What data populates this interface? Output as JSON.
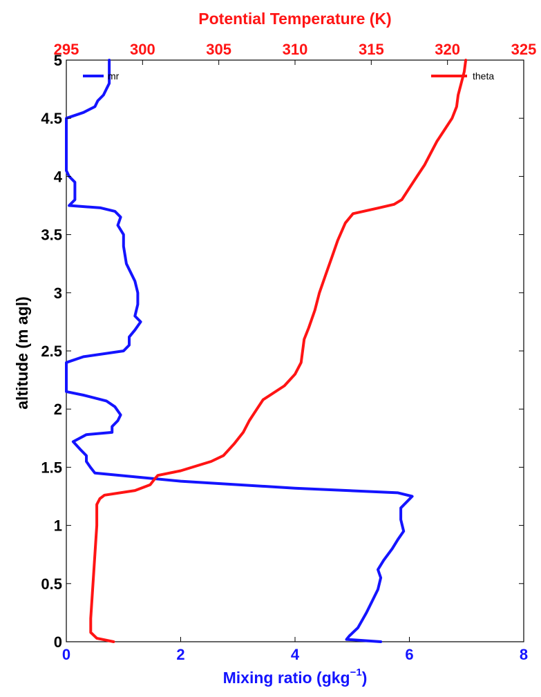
{
  "chart_data": {
    "type": "line",
    "ylabel": "altitude (m agl)",
    "ylim": [
      0,
      5
    ],
    "yticks": [
      0,
      0.5,
      1,
      1.5,
      2,
      2.5,
      3,
      3.5,
      4,
      4.5,
      5
    ],
    "ytick_labels": [
      "0",
      "0.5",
      "1",
      "1.5",
      "2",
      "2.5",
      "3",
      "3.5",
      "4",
      "4.5",
      "5"
    ],
    "grid": false,
    "x_bottom": {
      "label_main": "Mixing ratio (gkg",
      "label_sup": "−1",
      "label_end": ")",
      "lim": [
        0,
        8
      ],
      "ticks": [
        0,
        2,
        4,
        6,
        8
      ],
      "tick_labels": [
        "0",
        "2",
        "4",
        "6",
        "8"
      ],
      "color": "#1414ff"
    },
    "x_top": {
      "label": "Potential Temperature (K)",
      "lim": [
        295,
        325
      ],
      "ticks": [
        295,
        300,
        305,
        310,
        315,
        320,
        325
      ],
      "tick_labels": [
        "295",
        "300",
        "305",
        "310",
        "315",
        "320",
        "325"
      ],
      "color": "#ff1414"
    },
    "series": [
      {
        "name": "mr",
        "axis": "bottom",
        "color": "#1414ff",
        "points": [
          [
            5.5,
            0.0
          ],
          [
            4.9,
            0.02
          ],
          [
            4.95,
            0.05
          ],
          [
            5.1,
            0.12
          ],
          [
            5.25,
            0.25
          ],
          [
            5.35,
            0.35
          ],
          [
            5.45,
            0.45
          ],
          [
            5.5,
            0.55
          ],
          [
            5.45,
            0.62
          ],
          [
            5.55,
            0.7
          ],
          [
            5.7,
            0.8
          ],
          [
            5.8,
            0.88
          ],
          [
            5.9,
            0.95
          ],
          [
            5.85,
            1.05
          ],
          [
            5.85,
            1.15
          ],
          [
            6.05,
            1.25
          ],
          [
            5.8,
            1.28
          ],
          [
            4.0,
            1.32
          ],
          [
            2.0,
            1.38
          ],
          [
            0.5,
            1.45
          ],
          [
            0.42,
            1.5
          ],
          [
            0.35,
            1.55
          ],
          [
            0.35,
            1.6
          ],
          [
            0.25,
            1.65
          ],
          [
            0.12,
            1.72
          ],
          [
            0.35,
            1.78
          ],
          [
            0.8,
            1.8
          ],
          [
            0.8,
            1.85
          ],
          [
            0.9,
            1.9
          ],
          [
            0.95,
            1.95
          ],
          [
            0.85,
            2.02
          ],
          [
            0.7,
            2.07
          ],
          [
            0.3,
            2.12
          ],
          [
            0.0,
            2.15
          ],
          [
            0.0,
            2.4
          ],
          [
            0.3,
            2.45
          ],
          [
            1.0,
            2.5
          ],
          [
            1.1,
            2.55
          ],
          [
            1.1,
            2.62
          ],
          [
            1.2,
            2.68
          ],
          [
            1.3,
            2.75
          ],
          [
            1.2,
            2.8
          ],
          [
            1.25,
            2.9
          ],
          [
            1.25,
            3.0
          ],
          [
            1.2,
            3.1
          ],
          [
            1.05,
            3.25
          ],
          [
            1.0,
            3.4
          ],
          [
            1.0,
            3.5
          ],
          [
            0.9,
            3.58
          ],
          [
            0.95,
            3.65
          ],
          [
            0.85,
            3.7
          ],
          [
            0.6,
            3.73
          ],
          [
            0.05,
            3.75
          ],
          [
            0.15,
            3.8
          ],
          [
            0.15,
            3.95
          ],
          [
            0.05,
            4.0
          ],
          [
            0.0,
            4.05
          ],
          [
            0.0,
            4.5
          ],
          [
            0.3,
            4.55
          ],
          [
            0.5,
            4.6
          ],
          [
            0.55,
            4.65
          ],
          [
            0.65,
            4.7
          ],
          [
            0.7,
            4.75
          ],
          [
            0.75,
            4.8
          ],
          [
            0.75,
            4.9
          ],
          [
            0.75,
            5.0
          ]
        ]
      },
      {
        "name": "theta",
        "axis": "top",
        "color": "#ff1414",
        "points": [
          [
            298.1,
            0.0
          ],
          [
            297.0,
            0.03
          ],
          [
            296.6,
            0.08
          ],
          [
            296.6,
            0.2
          ],
          [
            296.7,
            0.4
          ],
          [
            296.8,
            0.6
          ],
          [
            296.9,
            0.8
          ],
          [
            297.0,
            1.0
          ],
          [
            297.0,
            1.18
          ],
          [
            297.2,
            1.23
          ],
          [
            297.5,
            1.26
          ],
          [
            299.5,
            1.3
          ],
          [
            300.5,
            1.35
          ],
          [
            300.8,
            1.4
          ],
          [
            301.0,
            1.43
          ],
          [
            302.5,
            1.47
          ],
          [
            304.5,
            1.55
          ],
          [
            305.3,
            1.6
          ],
          [
            306.0,
            1.7
          ],
          [
            306.6,
            1.8
          ],
          [
            307.0,
            1.9
          ],
          [
            307.5,
            2.0
          ],
          [
            307.9,
            2.08
          ],
          [
            309.3,
            2.2
          ],
          [
            310.0,
            2.3
          ],
          [
            310.4,
            2.4
          ],
          [
            310.5,
            2.5
          ],
          [
            310.6,
            2.6
          ],
          [
            310.9,
            2.7
          ],
          [
            311.3,
            2.85
          ],
          [
            311.6,
            3.0
          ],
          [
            312.0,
            3.15
          ],
          [
            312.4,
            3.3
          ],
          [
            312.8,
            3.45
          ],
          [
            313.3,
            3.6
          ],
          [
            313.8,
            3.68
          ],
          [
            315.5,
            3.73
          ],
          [
            316.5,
            3.76
          ],
          [
            317.0,
            3.8
          ],
          [
            317.5,
            3.9
          ],
          [
            318.0,
            4.0
          ],
          [
            318.5,
            4.1
          ],
          [
            318.9,
            4.2
          ],
          [
            319.3,
            4.3
          ],
          [
            319.8,
            4.4
          ],
          [
            320.3,
            4.5
          ],
          [
            320.6,
            4.6
          ],
          [
            320.7,
            4.7
          ],
          [
            320.9,
            4.8
          ],
          [
            321.1,
            4.9
          ],
          [
            321.2,
            5.0
          ]
        ]
      }
    ],
    "legend": [
      {
        "label": "mr",
        "placement": "top-left",
        "color": "#1414ff"
      },
      {
        "label": "theta",
        "placement": "top-right",
        "color": "#ff1414"
      }
    ]
  }
}
